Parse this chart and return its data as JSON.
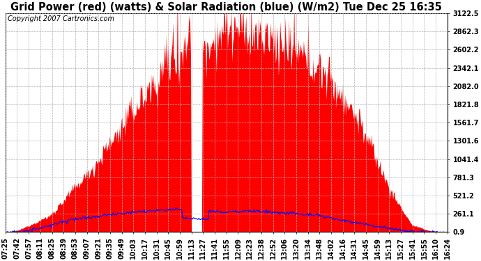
{
  "title": "Grid Power (red) (watts) & Solar Radiation (blue) (W/m2) Tue Dec 25 16:35",
  "copyright": "Copyright 2007 Cartronics.com",
  "yticks": [
    0.9,
    261.1,
    521.2,
    781.3,
    1041.4,
    1301.6,
    1561.7,
    1821.8,
    2082.0,
    2342.1,
    2602.2,
    2862.3,
    3122.5
  ],
  "ymin": 0.9,
  "ymax": 3122.5,
  "bg_color": "#ffffff",
  "plot_bg_color": "#ffffff",
  "grid_color": "#b0b0b0",
  "fill_color": "#ff0000",
  "line_color": "#0000ff",
  "title_fontsize": 10.5,
  "copyright_fontsize": 7,
  "tick_label_fontsize": 7,
  "xtick_labels": [
    "07:25",
    "07:42",
    "07:57",
    "08:11",
    "08:25",
    "08:39",
    "08:53",
    "09:07",
    "09:21",
    "09:35",
    "09:49",
    "10:03",
    "10:17",
    "10:31",
    "10:45",
    "10:59",
    "11:13",
    "11:27",
    "11:41",
    "11:55",
    "12:09",
    "12:23",
    "12:38",
    "12:52",
    "13:06",
    "13:20",
    "13:34",
    "13:48",
    "14:02",
    "14:16",
    "14:31",
    "14:45",
    "14:59",
    "15:13",
    "15:27",
    "15:41",
    "15:55",
    "16:10",
    "16:24"
  ]
}
